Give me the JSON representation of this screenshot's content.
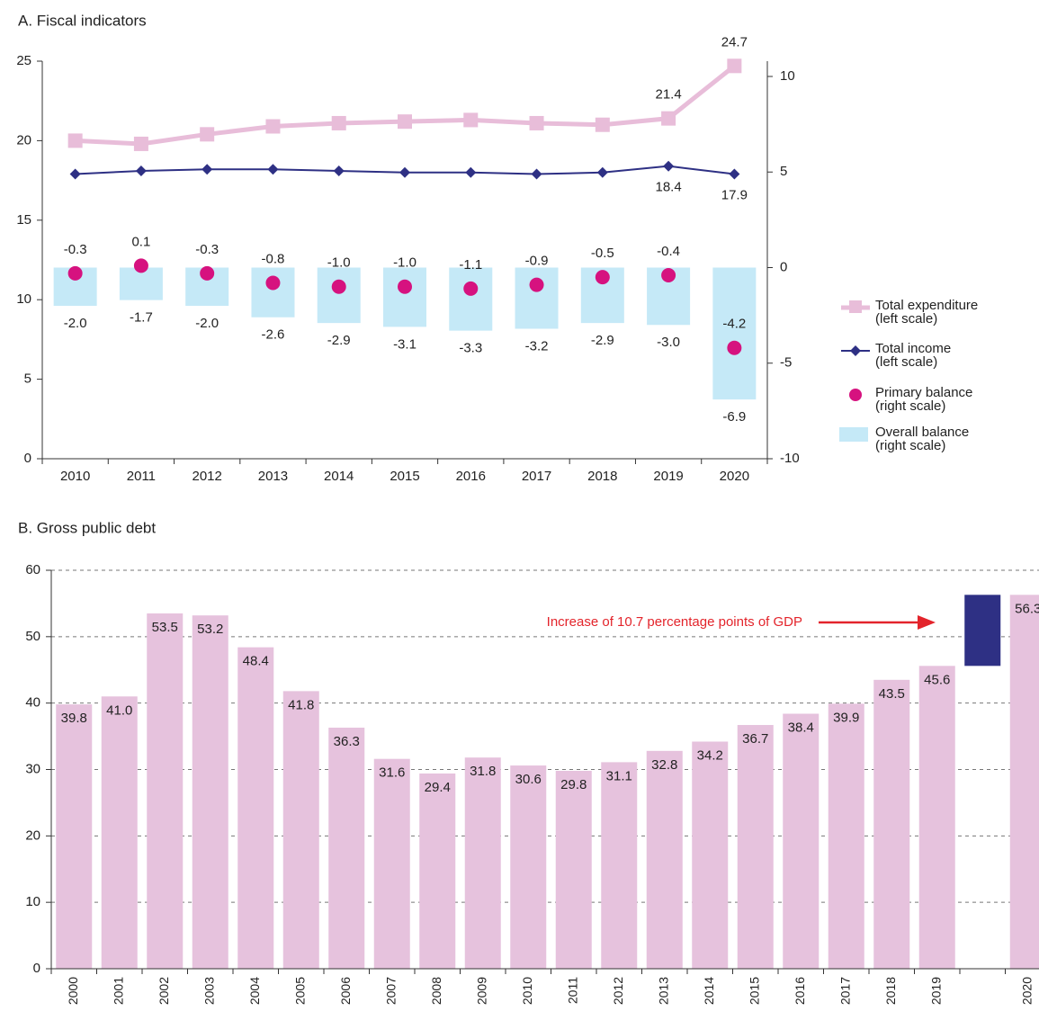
{
  "chart_data": [
    {
      "type": "combo",
      "title": "A. Fiscal indicators",
      "categories": [
        "2010",
        "2011",
        "2012",
        "2013",
        "2014",
        "2015",
        "2016",
        "2017",
        "2018",
        "2019",
        "2020"
      ],
      "ylim": [
        0,
        25
      ],
      "yticks": [
        0,
        5,
        10,
        15,
        20,
        25
      ],
      "y2lim": [
        -10,
        10.8
      ],
      "y2ticks": [
        -10,
        -5,
        0,
        5,
        10
      ],
      "legend": "right",
      "series": [
        {
          "name": "Total expenditure\n(left scale)",
          "type": "line",
          "marker": "square",
          "color": "#e8bdd9",
          "values": [
            20.0,
            19.8,
            20.4,
            20.9,
            21.1,
            21.2,
            21.3,
            21.1,
            21.0,
            21.4,
            24.7
          ],
          "value_labels": [
            null,
            null,
            null,
            null,
            null,
            null,
            null,
            null,
            null,
            "21.4",
            "24.7"
          ]
        },
        {
          "name": "Total income\n(left scale)",
          "type": "line",
          "marker": "diamond",
          "color": "#2e3084",
          "values": [
            17.9,
            18.1,
            18.2,
            18.2,
            18.1,
            18.0,
            18.0,
            17.9,
            18.0,
            18.4,
            17.9
          ],
          "value_labels": [
            null,
            null,
            null,
            null,
            null,
            null,
            null,
            null,
            null,
            "18.4",
            "17.9"
          ]
        },
        {
          "name": "Primary balance\n(right scale)",
          "type": "scatter",
          "axis": "y2",
          "color": "#d6127f",
          "values": [
            -0.3,
            0.1,
            -0.3,
            -0.8,
            -1.0,
            -1.0,
            -1.1,
            -0.9,
            -0.5,
            -0.4,
            -4.2
          ],
          "value_labels": [
            "-0.3",
            "0.1",
            "-0.3",
            "-0.8",
            "-1.0",
            "-1.0",
            "-1.1",
            "-0.9",
            "-0.5",
            "-0.4",
            "-4.2"
          ]
        },
        {
          "name": "Overall balance\n(right scale)",
          "type": "bar",
          "axis": "y2",
          "color": "#c5e9f7",
          "values": [
            -2.0,
            -1.7,
            -2.0,
            -2.6,
            -2.9,
            -3.1,
            -3.3,
            -3.2,
            -2.9,
            -3.0,
            -6.9
          ],
          "value_labels": [
            "-2.0",
            "-1.7",
            "-2.0",
            "-2.6",
            "-2.9",
            "-3.1",
            "-3.3",
            "-3.2",
            "-2.9",
            "-3.0",
            "-6.9"
          ]
        }
      ]
    },
    {
      "type": "bar",
      "title": "B. Gross public debt",
      "categories": [
        "2000",
        "2001",
        "2002",
        "2003",
        "2004",
        "2005",
        "2006",
        "2007",
        "2008",
        "2009",
        "2010",
        "2011",
        "2012",
        "2013",
        "2014",
        "2015",
        "2016",
        "2017",
        "2018",
        "2019",
        null,
        "2020"
      ],
      "ylim": [
        0,
        60
      ],
      "yticks": [
        0,
        10,
        20,
        30,
        40,
        50,
        60
      ],
      "grid": true,
      "color": "#e6c2dd",
      "values": [
        39.8,
        41.0,
        53.5,
        53.2,
        48.4,
        41.8,
        36.3,
        31.6,
        29.4,
        31.8,
        30.6,
        29.8,
        31.1,
        32.8,
        34.2,
        36.7,
        38.4,
        39.9,
        43.5,
        45.6,
        null,
        56.3
      ],
      "value_labels": [
        "39.8",
        "41.0",
        "53.5",
        "53.2",
        "48.4",
        "41.8",
        "36.3",
        "31.6",
        "29.4",
        "31.8",
        "30.6",
        "29.8",
        "31.1",
        "32.8",
        "34.2",
        "36.7",
        "38.4",
        "39.9",
        "43.5",
        "45.6",
        null,
        "56.3"
      ],
      "increase": {
        "color": "#2e3084",
        "values": [
          null,
          null,
          null,
          null,
          null,
          null,
          null,
          null,
          null,
          null,
          null,
          null,
          null,
          null,
          null,
          null,
          null,
          null,
          null,
          null,
          10.7,
          null
        ]
      },
      "annotation": "Increase of 10.7 percentage points of GDP",
      "annotation_color": "#e3242b"
    }
  ]
}
